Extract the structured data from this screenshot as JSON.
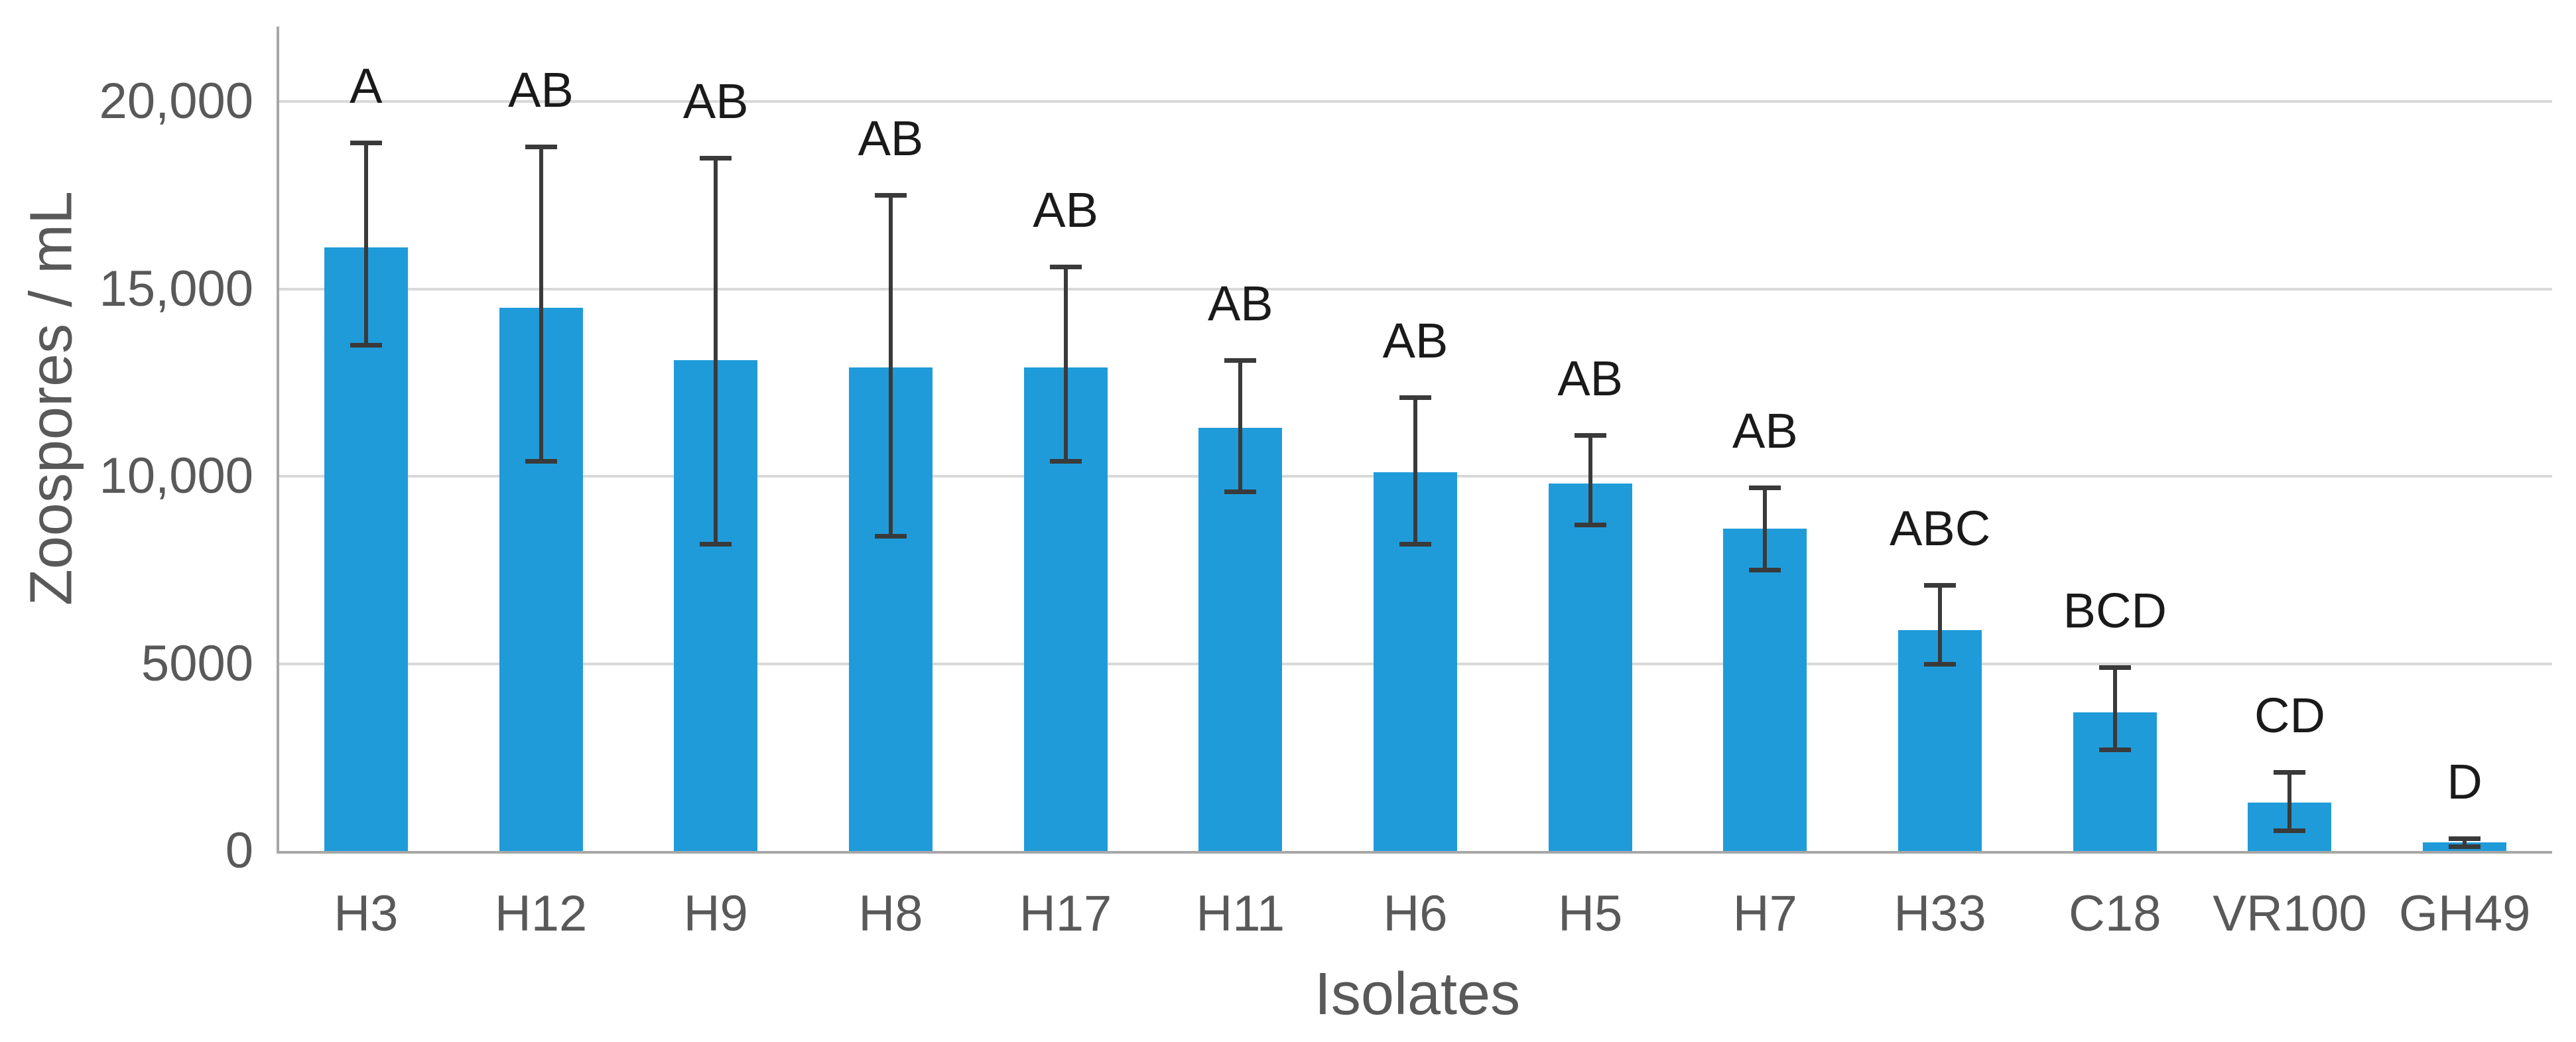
{
  "chart_data": {
    "type": "bar",
    "title": "",
    "xlabel": "Isolates",
    "ylabel": "Zoospores / mL",
    "categories": [
      "H3",
      "H12",
      "H9",
      "H8",
      "H17",
      "H11",
      "H6",
      "H5",
      "H7",
      "H33",
      "C18",
      "VR100",
      "GH49"
    ],
    "values": [
      16100,
      14500,
      13100,
      12900,
      12900,
      11300,
      10100,
      9800,
      8600,
      5900,
      3700,
      1300,
      230
    ],
    "error_bar_top": [
      18900,
      18800,
      18500,
      17500,
      15600,
      13100,
      12100,
      11100,
      9700,
      7100,
      4900,
      2100,
      330
    ],
    "error_bar_bottom": [
      13500,
      10400,
      8200,
      8400,
      10400,
      9600,
      8200,
      8700,
      7500,
      5000,
      2700,
      550,
      120
    ],
    "significance_letters": [
      "A",
      "AB",
      "AB",
      "AB",
      "AB",
      "AB",
      "AB",
      "AB",
      "AB",
      "ABC",
      "BCD",
      "CD",
      "D"
    ],
    "y_axis": {
      "min": 0,
      "max": 22000,
      "tick_values": [
        0,
        5000,
        10000,
        15000,
        20000
      ],
      "tick_labels": [
        "0",
        "5000",
        "10,000",
        "15,000",
        "20,000"
      ]
    },
    "grid": "horizontal-major",
    "legend": "none",
    "colors": {
      "bar": "#209BD9",
      "error_bar": "#3A3A3A",
      "gridline": "#D9D9D9",
      "axis_line": "#A7A7A7",
      "axis_text": "#595959",
      "letters": "#1A1A1A",
      "background": "#FFFFFF"
    }
  }
}
